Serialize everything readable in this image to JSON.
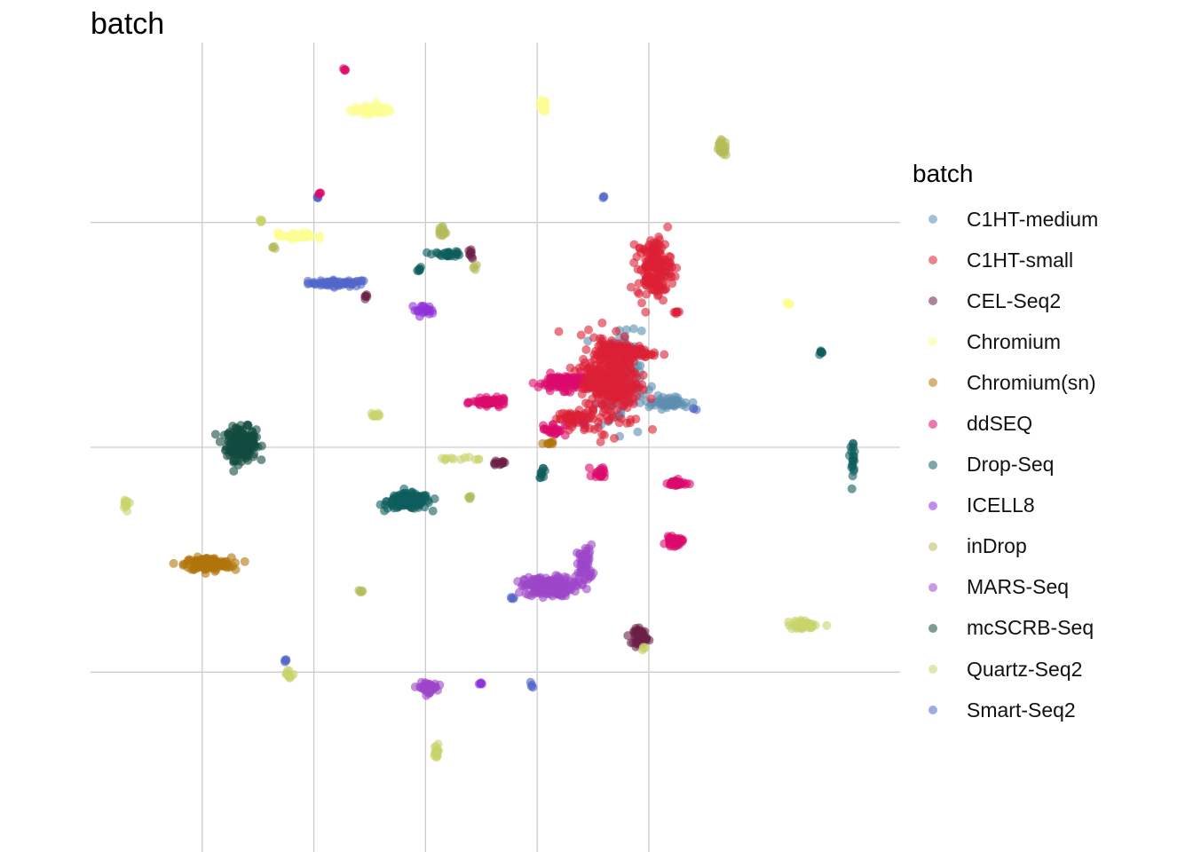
{
  "chart_data": {
    "type": "scatter",
    "title": "batch",
    "xlabel": "",
    "ylabel": "",
    "grid": true,
    "axis_ticks_shown": false,
    "legend": {
      "title": "batch",
      "position": "right",
      "items": [
        {
          "label": "C1HT-medium",
          "color": "#5b8db0"
        },
        {
          "label": "C1HT-small",
          "color": "#dc2035"
        },
        {
          "label": "CEL-Seq2",
          "color": "#6a1f47"
        },
        {
          "label": "Chromium",
          "color": "#fbfd93"
        },
        {
          "label": "Chromium(sn)",
          "color": "#b0740b"
        },
        {
          "label": "ddSEQ",
          "color": "#dc0a6c"
        },
        {
          "label": "Drop-Seq",
          "color": "#0d5e5e"
        },
        {
          "label": "ICELL8",
          "color": "#9030d8"
        },
        {
          "label": "inDrop",
          "color": "#b6bb5a"
        },
        {
          "label": "MARS-Seq",
          "color": "#9c46c8"
        },
        {
          "label": "mcSCRB-Seq",
          "color": "#134b3f"
        },
        {
          "label": "Quartz-Seq2",
          "color": "#c8d36c"
        },
        {
          "label": "Smart-Seq2",
          "color": "#5266c8"
        }
      ]
    },
    "clusters": [
      {
        "series": "Smart-Seq2",
        "x": -1.55,
        "y": 3.65,
        "spread": [
          0.45,
          0.06
        ],
        "n": 60
      },
      {
        "series": "Smart-Seq2",
        "x": -1.95,
        "y": 5.55,
        "spread": [
          0.03,
          0.03
        ],
        "n": 4
      },
      {
        "series": "Smart-Seq2",
        "x": -2.5,
        "y": -4.75,
        "spread": [
          0.03,
          0.03
        ],
        "n": 4
      },
      {
        "series": "Smart-Seq2",
        "x": 1.55,
        "y": -3.35,
        "spread": [
          0.03,
          0.03
        ],
        "n": 4
      },
      {
        "series": "Smart-Seq2",
        "x": 1.9,
        "y": -5.3,
        "spread": [
          0.05,
          0.05
        ],
        "n": 4
      },
      {
        "series": "Smart-Seq2",
        "x": 3.2,
        "y": 5.55,
        "spread": [
          0.03,
          0.03
        ],
        "n": 3
      },
      {
        "series": "Smart-Seq2",
        "x": 4.8,
        "y": 0.85,
        "spread": [
          0.04,
          0.04
        ],
        "n": 3
      },
      {
        "series": "mcSCRB-Seq",
        "x": -3.3,
        "y": 0.08,
        "spread": [
          0.22,
          0.3
        ],
        "n": 220
      },
      {
        "series": "Drop-Seq",
        "x": -0.3,
        "y": -1.2,
        "spread": [
          0.32,
          0.14
        ],
        "n": 160
      },
      {
        "series": "Drop-Seq",
        "x": 0.4,
        "y": 4.3,
        "spread": [
          0.22,
          0.05
        ],
        "n": 25
      },
      {
        "series": "Drop-Seq",
        "x": -0.1,
        "y": 3.95,
        "spread": [
          0.04,
          0.04
        ],
        "n": 6
      },
      {
        "series": "Drop-Seq",
        "x": 2.1,
        "y": -0.55,
        "spread": [
          0.05,
          0.1
        ],
        "n": 10
      },
      {
        "series": "Drop-Seq",
        "x": 7.1,
        "y": 2.1,
        "spread": [
          0.05,
          0.05
        ],
        "n": 6
      },
      {
        "series": "Drop-Seq",
        "x": 7.65,
        "y": -0.2,
        "spread": [
          0.04,
          0.3
        ],
        "n": 20
      },
      {
        "series": "Chromium(sn)",
        "x": -3.9,
        "y": -2.6,
        "spread": [
          0.35,
          0.12
        ],
        "n": 160
      },
      {
        "series": "Chromium(sn)",
        "x": 2.2,
        "y": 0.1,
        "spread": [
          0.08,
          0.04
        ],
        "n": 8
      },
      {
        "series": "MARS-Seq",
        "x": 2.2,
        "y": -3.1,
        "spread": [
          0.35,
          0.18
        ],
        "n": 200
      },
      {
        "series": "MARS-Seq",
        "x": 2.85,
        "y": -2.6,
        "spread": [
          0.12,
          0.35
        ],
        "n": 60
      },
      {
        "series": "MARS-Seq",
        "x": 0.05,
        "y": -5.35,
        "spread": [
          0.13,
          0.09
        ],
        "n": 60
      },
      {
        "series": "ICELL8",
        "x": -0.05,
        "y": 3.05,
        "spread": [
          0.17,
          0.09
        ],
        "n": 20
      },
      {
        "series": "ICELL8",
        "x": 1.0,
        "y": -5.25,
        "spread": [
          0.03,
          0.05
        ],
        "n": 5
      },
      {
        "series": "ICELL8",
        "x": 2.85,
        "y": 0.55,
        "spread": [
          0.06,
          0.04
        ],
        "n": 5
      },
      {
        "series": "CEL-Seq2",
        "x": 3.85,
        "y": -4.2,
        "spread": [
          0.1,
          0.14
        ],
        "n": 60
      },
      {
        "series": "CEL-Seq2",
        "x": 1.3,
        "y": -0.35,
        "spread": [
          0.12,
          0.04
        ],
        "n": 12
      },
      {
        "series": "CEL-Seq2",
        "x": 0.82,
        "y": 4.3,
        "spread": [
          0.04,
          0.1
        ],
        "n": 8
      },
      {
        "series": "CEL-Seq2",
        "x": -1.05,
        "y": 3.35,
        "spread": [
          0.04,
          0.03
        ],
        "n": 5
      },
      {
        "series": "ddSEQ",
        "x": 2.5,
        "y": 1.45,
        "spread": [
          0.4,
          0.15
        ],
        "n": 120
      },
      {
        "series": "ddSEQ",
        "x": 1.15,
        "y": 1.0,
        "spread": [
          0.25,
          0.07
        ],
        "n": 70
      },
      {
        "series": "ddSEQ",
        "x": 4.5,
        "y": -0.8,
        "spread": [
          0.13,
          0.06
        ],
        "n": 40
      },
      {
        "series": "ddSEQ",
        "x": 4.45,
        "y": -2.1,
        "spread": [
          0.12,
          0.08
        ],
        "n": 40
      },
      {
        "series": "ddSEQ",
        "x": 3.15,
        "y": -0.55,
        "spread": [
          0.12,
          0.12
        ],
        "n": 20
      },
      {
        "series": "ddSEQ",
        "x": -1.45,
        "y": 8.4,
        "spread": [
          0.02,
          0.02
        ],
        "n": 4
      },
      {
        "series": "ddSEQ",
        "x": -1.9,
        "y": 5.65,
        "spread": [
          0.02,
          0.02
        ],
        "n": 4
      },
      {
        "series": "ddSEQ",
        "x": 2.3,
        "y": 0.4,
        "spread": [
          0.18,
          0.12
        ],
        "n": 25
      },
      {
        "series": "C1HT-medium",
        "x": 3.45,
        "y": 1.5,
        "spread": [
          0.35,
          0.9
        ],
        "n": 120
      },
      {
        "series": "C1HT-medium",
        "x": 4.35,
        "y": 1.0,
        "spread": [
          0.35,
          0.12
        ],
        "n": 50
      },
      {
        "series": "C1HT-small",
        "x": 3.3,
        "y": 1.5,
        "spread": [
          0.45,
          0.85
        ],
        "n": 300
      },
      {
        "series": "C1HT-small",
        "x": 4.1,
        "y": 4.0,
        "spread": [
          0.25,
          0.55
        ],
        "n": 160
      },
      {
        "series": "C1HT-small",
        "x": 3.6,
        "y": 2.1,
        "spread": [
          0.4,
          0.15
        ],
        "n": 80
      },
      {
        "series": "C1HT-small",
        "x": 4.5,
        "y": 3.0,
        "spread": [
          0.04,
          0.04
        ],
        "n": 6
      },
      {
        "series": "C1HT-small",
        "x": 2.6,
        "y": 0.65,
        "spread": [
          0.25,
          0.15
        ],
        "n": 40
      },
      {
        "series": "Chromium",
        "x": -0.95,
        "y": 7.5,
        "spread": [
          0.3,
          0.08
        ],
        "n": 70
      },
      {
        "series": "Chromium",
        "x": 2.1,
        "y": 7.6,
        "spread": [
          0.05,
          0.12
        ],
        "n": 25
      },
      {
        "series": "Chromium",
        "x": -2.3,
        "y": 4.7,
        "spread": [
          0.28,
          0.06
        ],
        "n": 50
      },
      {
        "series": "Chromium",
        "x": 6.5,
        "y": 3.2,
        "spread": [
          0.03,
          0.03
        ],
        "n": 6
      },
      {
        "series": "inDrop",
        "x": 0.3,
        "y": 4.8,
        "spread": [
          0.05,
          0.12
        ],
        "n": 20
      },
      {
        "series": "inDrop",
        "x": 5.3,
        "y": 6.65,
        "spread": [
          0.08,
          0.15
        ],
        "n": 25
      },
      {
        "series": "inDrop",
        "x": -2.7,
        "y": 4.45,
        "spread": [
          0.03,
          0.03
        ],
        "n": 4
      },
      {
        "series": "inDrop",
        "x": 0.8,
        "y": -1.1,
        "spread": [
          0.04,
          0.04
        ],
        "n": 5
      },
      {
        "series": "inDrop",
        "x": -1.15,
        "y": -3.2,
        "spread": [
          0.04,
          0.04
        ],
        "n": 5
      },
      {
        "series": "inDrop",
        "x": 0.9,
        "y": 4.0,
        "spread": [
          0.04,
          0.04
        ],
        "n": 4
      },
      {
        "series": "Quartz-Seq2",
        "x": -2.95,
        "y": 5.05,
        "spread": [
          0.03,
          0.05
        ],
        "n": 6
      },
      {
        "series": "Quartz-Seq2",
        "x": -0.9,
        "y": 0.7,
        "spread": [
          0.08,
          0.06
        ],
        "n": 12
      },
      {
        "series": "Quartz-Seq2",
        "x": -5.35,
        "y": -1.2,
        "spread": [
          0.05,
          0.12
        ],
        "n": 10
      },
      {
        "series": "Quartz-Seq2",
        "x": -2.45,
        "y": -5.05,
        "spread": [
          0.08,
          0.1
        ],
        "n": 12
      },
      {
        "series": "Quartz-Seq2",
        "x": 6.8,
        "y": -3.95,
        "spread": [
          0.25,
          0.08
        ],
        "n": 40
      },
      {
        "series": "Quartz-Seq2",
        "x": 0.2,
        "y": -6.8,
        "spread": [
          0.04,
          0.18
        ],
        "n": 18
      },
      {
        "series": "Quartz-Seq2",
        "x": 0.6,
        "y": -0.25,
        "spread": [
          0.35,
          0.04
        ],
        "n": 12
      },
      {
        "series": "Quartz-Seq2",
        "x": 3.9,
        "y": -4.45,
        "spread": [
          0.03,
          0.05
        ],
        "n": 4
      }
    ]
  }
}
